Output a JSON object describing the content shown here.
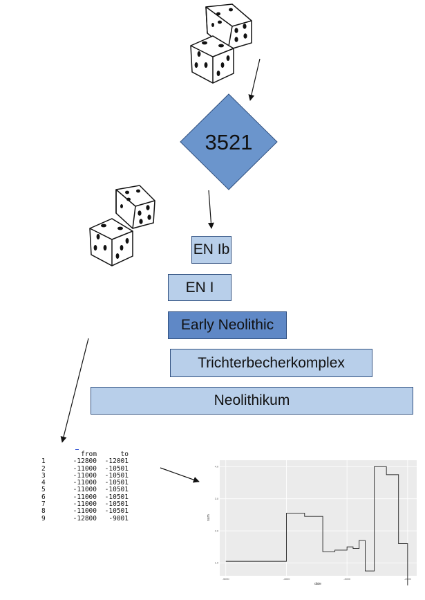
{
  "diamond_label": "3521",
  "boxes": {
    "en_ib": "EN Ib",
    "en_i": "EN I",
    "early_neolithic": "Early Neolithic",
    "trichterbecher": "Trichterbecherkomplex",
    "neolithikum": "Neolithikum"
  },
  "table": {
    "headers": [
      "",
      "from",
      "to"
    ],
    "rows": [
      [
        "1",
        "-12800",
        "-12001"
      ],
      [
        "2",
        "-11000",
        "-10501"
      ],
      [
        "3",
        "-11000",
        "-10501"
      ],
      [
        "4",
        "-11000",
        "-10501"
      ],
      [
        "5",
        "-11000",
        "-10501"
      ],
      [
        "6",
        "-11000",
        "-10501"
      ],
      [
        "7",
        "-11000",
        "-10501"
      ],
      [
        "8",
        "-11000",
        "-10501"
      ],
      [
        "9",
        "-12800",
        "-9001"
      ]
    ]
  },
  "chart_data": {
    "type": "line",
    "step": true,
    "xlabel": "date",
    "ylabel": "sum",
    "x_ticks": [
      "-5000",
      "-4000",
      "-3000",
      "-2000"
    ],
    "y_ticks": [
      "1.0",
      "2.0",
      "3.0",
      "4.0"
    ],
    "xlim": [
      -5100,
      -1850
    ],
    "ylim": [
      0.6,
      4.2
    ],
    "grid": true,
    "x": [
      -5000,
      -4000,
      -3700,
      -3400,
      -3200,
      -3000,
      -2900,
      -2800,
      -2700,
      -2550,
      -2350,
      -2150,
      -2000
    ],
    "values": [
      1.05,
      2.55,
      2.45,
      1.35,
      1.4,
      1.5,
      1.45,
      1.7,
      0.75,
      4.0,
      3.75,
      1.6,
      0.3
    ]
  }
}
